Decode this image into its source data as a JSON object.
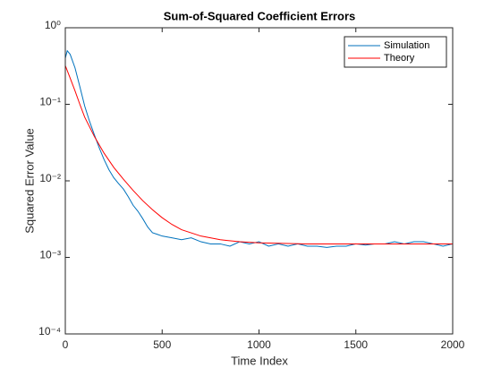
{
  "chart_data": {
    "type": "line",
    "title": "Sum-of-Squared Coefficient Errors",
    "xlabel": "Time Index",
    "ylabel": "Squared Error Value",
    "xlim": [
      0,
      2000
    ],
    "xticks": [
      0,
      500,
      1000,
      1500,
      2000
    ],
    "ylim": [
      0.0001,
      1
    ],
    "yticks": [
      {
        "value": 0.0001,
        "label": "10⁻⁴"
      },
      {
        "value": 0.001,
        "label": "10⁻³"
      },
      {
        "value": 0.01,
        "label": "10⁻²"
      },
      {
        "value": 0.1,
        "label": "10⁻¹"
      },
      {
        "value": 1,
        "label": "10⁰"
      }
    ],
    "ylog": true,
    "legend": "northeast",
    "series": [
      {
        "name": "Simulation",
        "color": "#0072bd",
        "x": [
          0,
          10,
          25,
          50,
          75,
          100,
          125,
          150,
          175,
          200,
          225,
          250,
          275,
          300,
          325,
          350,
          375,
          400,
          425,
          450,
          475,
          500,
          550,
          600,
          650,
          700,
          750,
          800,
          850,
          900,
          950,
          1000,
          1050,
          1100,
          1150,
          1200,
          1250,
          1300,
          1350,
          1400,
          1450,
          1500,
          1550,
          1600,
          1650,
          1700,
          1750,
          1800,
          1850,
          1900,
          1950,
          2000
        ],
        "values": [
          0.4,
          0.5,
          0.45,
          0.3,
          0.17,
          0.095,
          0.06,
          0.04,
          0.027,
          0.019,
          0.014,
          0.011,
          0.0092,
          0.0078,
          0.0062,
          0.0048,
          0.004,
          0.0032,
          0.0025,
          0.0021,
          0.002,
          0.0019,
          0.0018,
          0.0017,
          0.0018,
          0.0016,
          0.0015,
          0.0015,
          0.0014,
          0.0016,
          0.0015,
          0.0016,
          0.0014,
          0.0015,
          0.0014,
          0.0015,
          0.0014,
          0.0014,
          0.00135,
          0.0014,
          0.0014,
          0.0015,
          0.00145,
          0.0015,
          0.0015,
          0.0016,
          0.0015,
          0.0016,
          0.0016,
          0.0015,
          0.0014,
          0.0015
        ]
      },
      {
        "name": "Theory",
        "color": "#ff0000",
        "x": [
          0,
          25,
          50,
          75,
          100,
          150,
          200,
          250,
          300,
          350,
          400,
          450,
          500,
          550,
          600,
          700,
          800,
          900,
          1000,
          1250,
          1500,
          1750,
          2000
        ],
        "values": [
          0.32,
          0.22,
          0.15,
          0.1,
          0.068,
          0.038,
          0.023,
          0.015,
          0.0105,
          0.0075,
          0.0055,
          0.0042,
          0.0033,
          0.0027,
          0.0023,
          0.0019,
          0.0017,
          0.0016,
          0.00155,
          0.0015,
          0.0015,
          0.0015,
          0.0015
        ]
      }
    ]
  }
}
